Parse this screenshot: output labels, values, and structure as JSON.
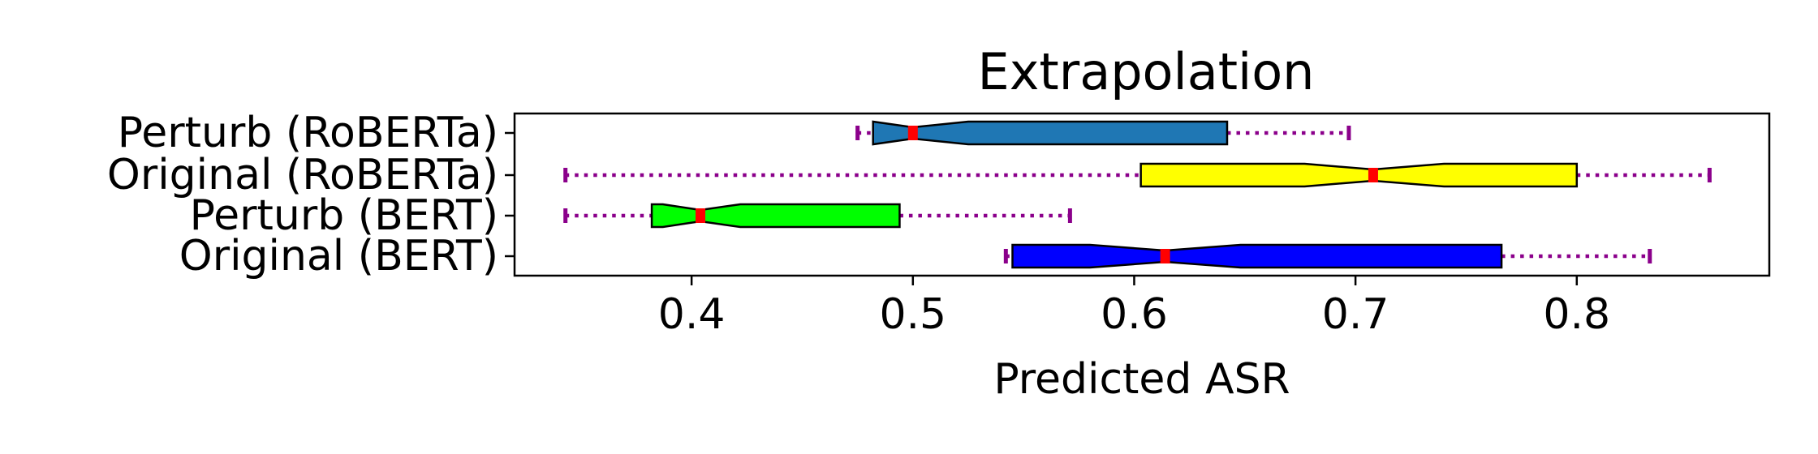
{
  "chart_data": {
    "type": "boxplot",
    "orientation": "horizontal",
    "title": "Extrapolation",
    "xlabel": "Predicted ASR",
    "ylabel": "",
    "xlim": [
      0.32,
      0.887
    ],
    "xticks": [
      0.4,
      0.5,
      0.6,
      0.7,
      0.8
    ],
    "xtick_labels": [
      "0.4",
      "0.5",
      "0.6",
      "0.7",
      "0.8"
    ],
    "grid": false,
    "notched": true,
    "whisker_color": "#8b008b",
    "median_color": "#ff0000",
    "categories": [
      "Perturb (RoBERTa)",
      "Original (RoBERTa)",
      "Perturb (BERT)",
      "Original (BERT)"
    ],
    "boxes": [
      {
        "label": "Perturb (RoBERTa)",
        "color": "#1f77b4",
        "whisker_low": 0.475,
        "q1": 0.482,
        "median": 0.5,
        "q3": 0.642,
        "whisker_high": 0.697,
        "notch_low": 0.482,
        "notch_high": 0.525
      },
      {
        "label": "Original (RoBERTa)",
        "color": "#ffff00",
        "whisker_low": 0.343,
        "q1": 0.603,
        "median": 0.708,
        "q3": 0.8,
        "whisker_high": 0.86,
        "notch_low": 0.677,
        "notch_high": 0.74
      },
      {
        "label": "Perturb (BERT)",
        "color": "#00ff00",
        "whisker_low": 0.343,
        "q1": 0.382,
        "median": 0.404,
        "q3": 0.494,
        "whisker_high": 0.571,
        "notch_low": 0.387,
        "notch_high": 0.422
      },
      {
        "label": "Original (BERT)",
        "color": "#0000ff",
        "whisker_low": 0.542,
        "q1": 0.545,
        "median": 0.614,
        "q3": 0.766,
        "whisker_high": 0.833,
        "notch_low": 0.58,
        "notch_high": 0.648
      }
    ]
  }
}
